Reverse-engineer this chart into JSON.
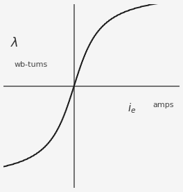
{
  "bg_color": "#f5f5f5",
  "curve_color": "#1a1a1a",
  "axis_color": "#666666",
  "axis_lw": 1.3,
  "curve_lw": 1.4,
  "ylabel_text": "$\\lambda$",
  "ylabel_unit": "wb-tums",
  "xlabel_text": "$i_e$",
  "xlabel_unit": "amps",
  "ylabel_fontsize": 13,
  "unit_fontsize": 8,
  "xlabel_fontsize": 11,
  "zigzag_amplitude": 0.018,
  "zigzag_freq": 60,
  "x_range": [
    -1.0,
    1.0
  ],
  "arctan_scale": 5.0
}
